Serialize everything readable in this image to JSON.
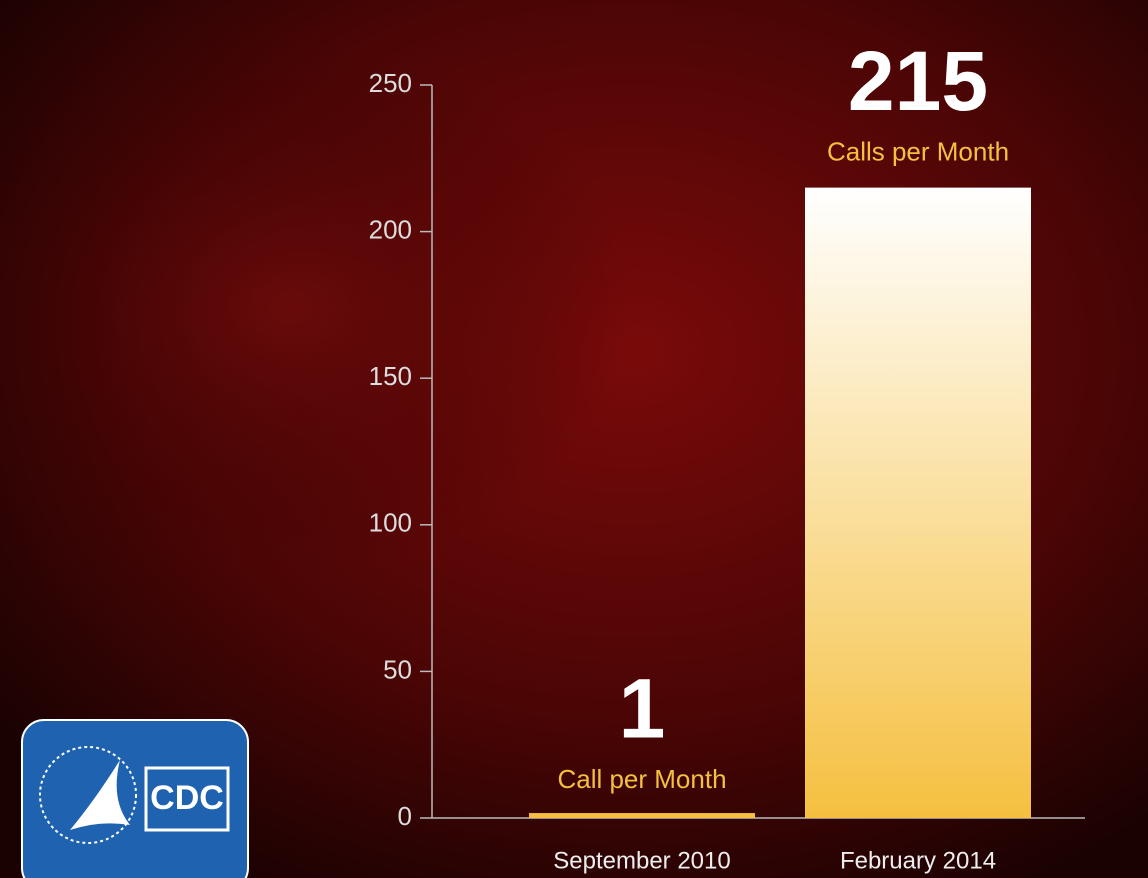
{
  "chart_data": {
    "type": "bar",
    "categories": [
      "September 2010",
      "February 2014"
    ],
    "values": [
      1,
      215
    ],
    "unit_labels": [
      "Call per Month",
      "Calls per Month"
    ],
    "color": "#f5c040",
    "ylim": [
      0,
      250
    ],
    "yticks": [
      0,
      50,
      100,
      150,
      200,
      250
    ]
  },
  "logo": {
    "text": "CDC"
  }
}
